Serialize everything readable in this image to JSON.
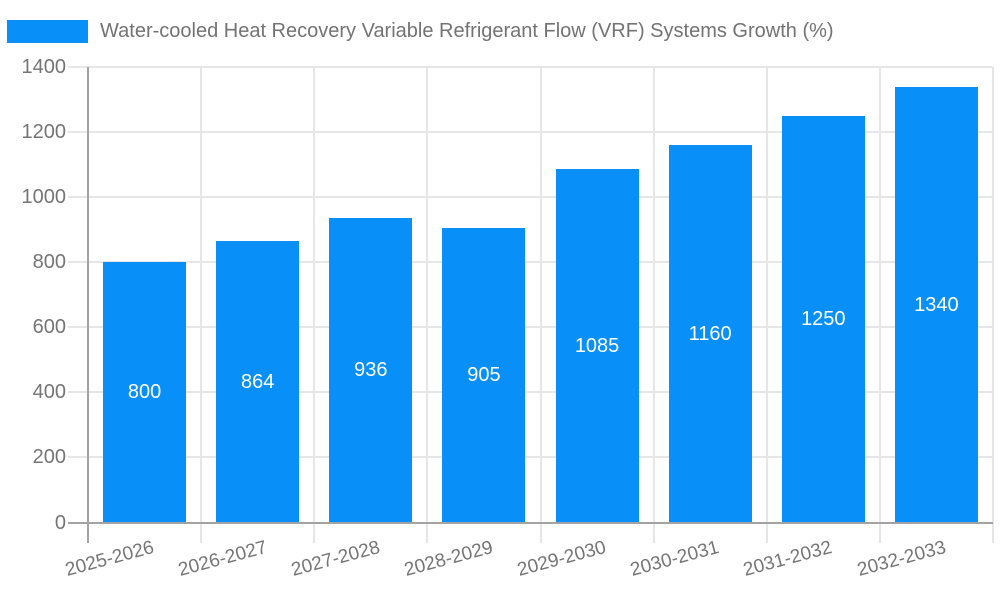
{
  "legend": {
    "label": "Water-cooled Heat Recovery Variable Refrigerant Flow (VRF) Systems Growth (%)",
    "marker_color": "#0890f8"
  },
  "chart_data": {
    "type": "bar",
    "title": "Water-cooled Heat Recovery Variable Refrigerant Flow (VRF) Systems Growth (%)",
    "categories": [
      "2025-2026",
      "2026-2027",
      "2027-2028",
      "2028-2029",
      "2029-2030",
      "2030-2031",
      "2031-2032",
      "2032-2033"
    ],
    "values": [
      800,
      864,
      936,
      905,
      1085,
      1160,
      1250,
      1340
    ],
    "data_labels": [
      "800",
      "864",
      "936",
      "905",
      "1085",
      "1160",
      "1250",
      "1340"
    ],
    "xlabel": "",
    "ylabel": "",
    "ylim": [
      0,
      1400
    ],
    "ytick_step": 200,
    "yticks": [
      0,
      200,
      400,
      600,
      800,
      1000,
      1200,
      1400
    ],
    "grid": "on",
    "legend_position": "top-left",
    "x_label_rotation_deg": -15,
    "data_label_position": "inside-center",
    "bar_color": "#0890f8",
    "data_label_color": "#ffffff",
    "axis_text_color": "#757575",
    "title_text_color": "#737373",
    "grid_color": "#e6e6e6",
    "axis_line_color": "#a3a3a3"
  }
}
